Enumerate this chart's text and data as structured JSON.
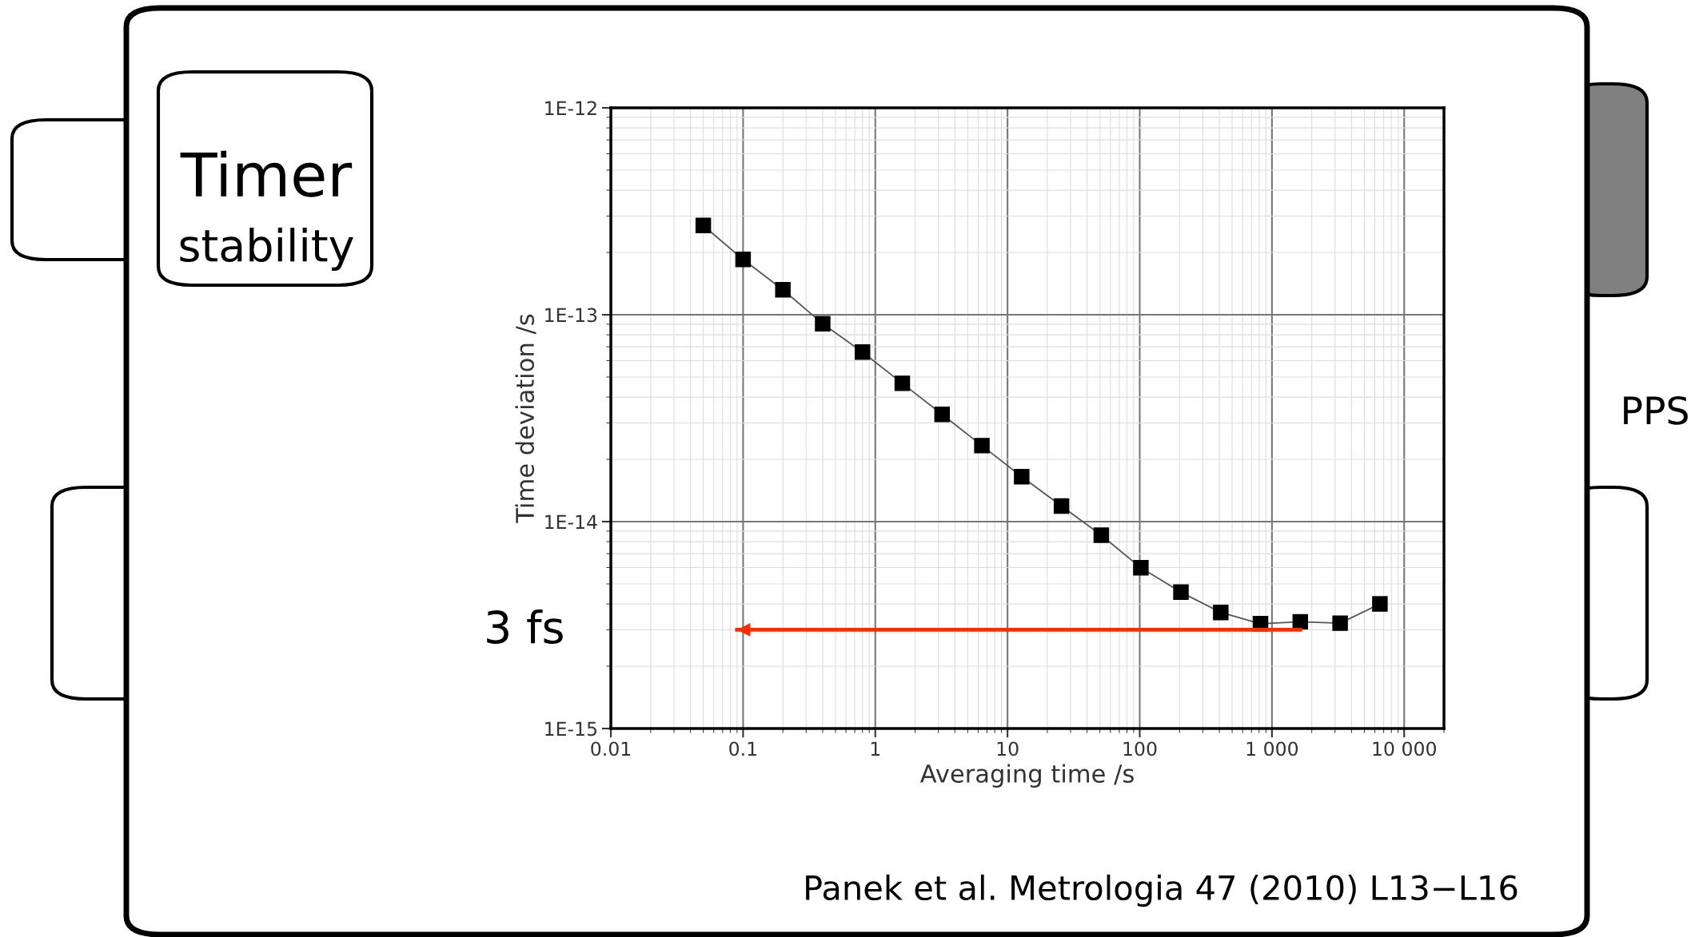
{
  "chart_data": {
    "type": "line",
    "title": "Timer",
    "subtitle": "stability",
    "xlabel": "Averaging time /s",
    "ylabel": "Time deviation /s",
    "log": "xy",
    "grid": true,
    "marker": "square",
    "line_style": "solid",
    "xlim": [
      0.01,
      20000
    ],
    "xticks": [
      0.01,
      0.1,
      1,
      10,
      100,
      {
        "value": 1000,
        "label": "1 000"
      },
      {
        "value": 10000,
        "label": "10 000"
      }
    ],
    "ylim": [
      1e-15,
      1e-12
    ],
    "yticks": [
      {
        "value": 1e-15,
        "label": "1E-15"
      },
      {
        "value": 1e-14,
        "label": "1E-14"
      },
      {
        "value": 1e-13,
        "label": "1E-13"
      },
      {
        "value": 1e-12,
        "label": "1E-12"
      }
    ],
    "series": [
      {
        "color": "#000000",
        "x": [
          0.05,
          0.1,
          0.2,
          0.4,
          0.8,
          1.6,
          3.2,
          6.4,
          12.8,
          25.6,
          51.2,
          102,
          205,
          410,
          819,
          1638,
          3277,
          6554
        ],
        "values": [
          2.7e-13,
          1.85e-13,
          1.32e-13,
          9.05e-14,
          6.6e-14,
          4.66e-14,
          3.3e-14,
          2.33e-14,
          1.65e-14,
          1.19e-14,
          8.6e-15,
          5.98e-15,
          4.56e-15,
          3.64e-15,
          3.21e-15,
          3.28e-15,
          3.23e-15,
          4e-15
        ]
      },
      {
        "type": "line",
        "color": "#ff2a00",
        "marker": "none",
        "x": [
          1638,
          0.09
        ],
        "values": [
          3e-15,
          3e-15
        ]
      }
    ],
    "annotations": [
      "3 fs",
      "PPS",
      "Panek et al. Metrologia 47 (2010) L13−L16"
    ]
  }
}
